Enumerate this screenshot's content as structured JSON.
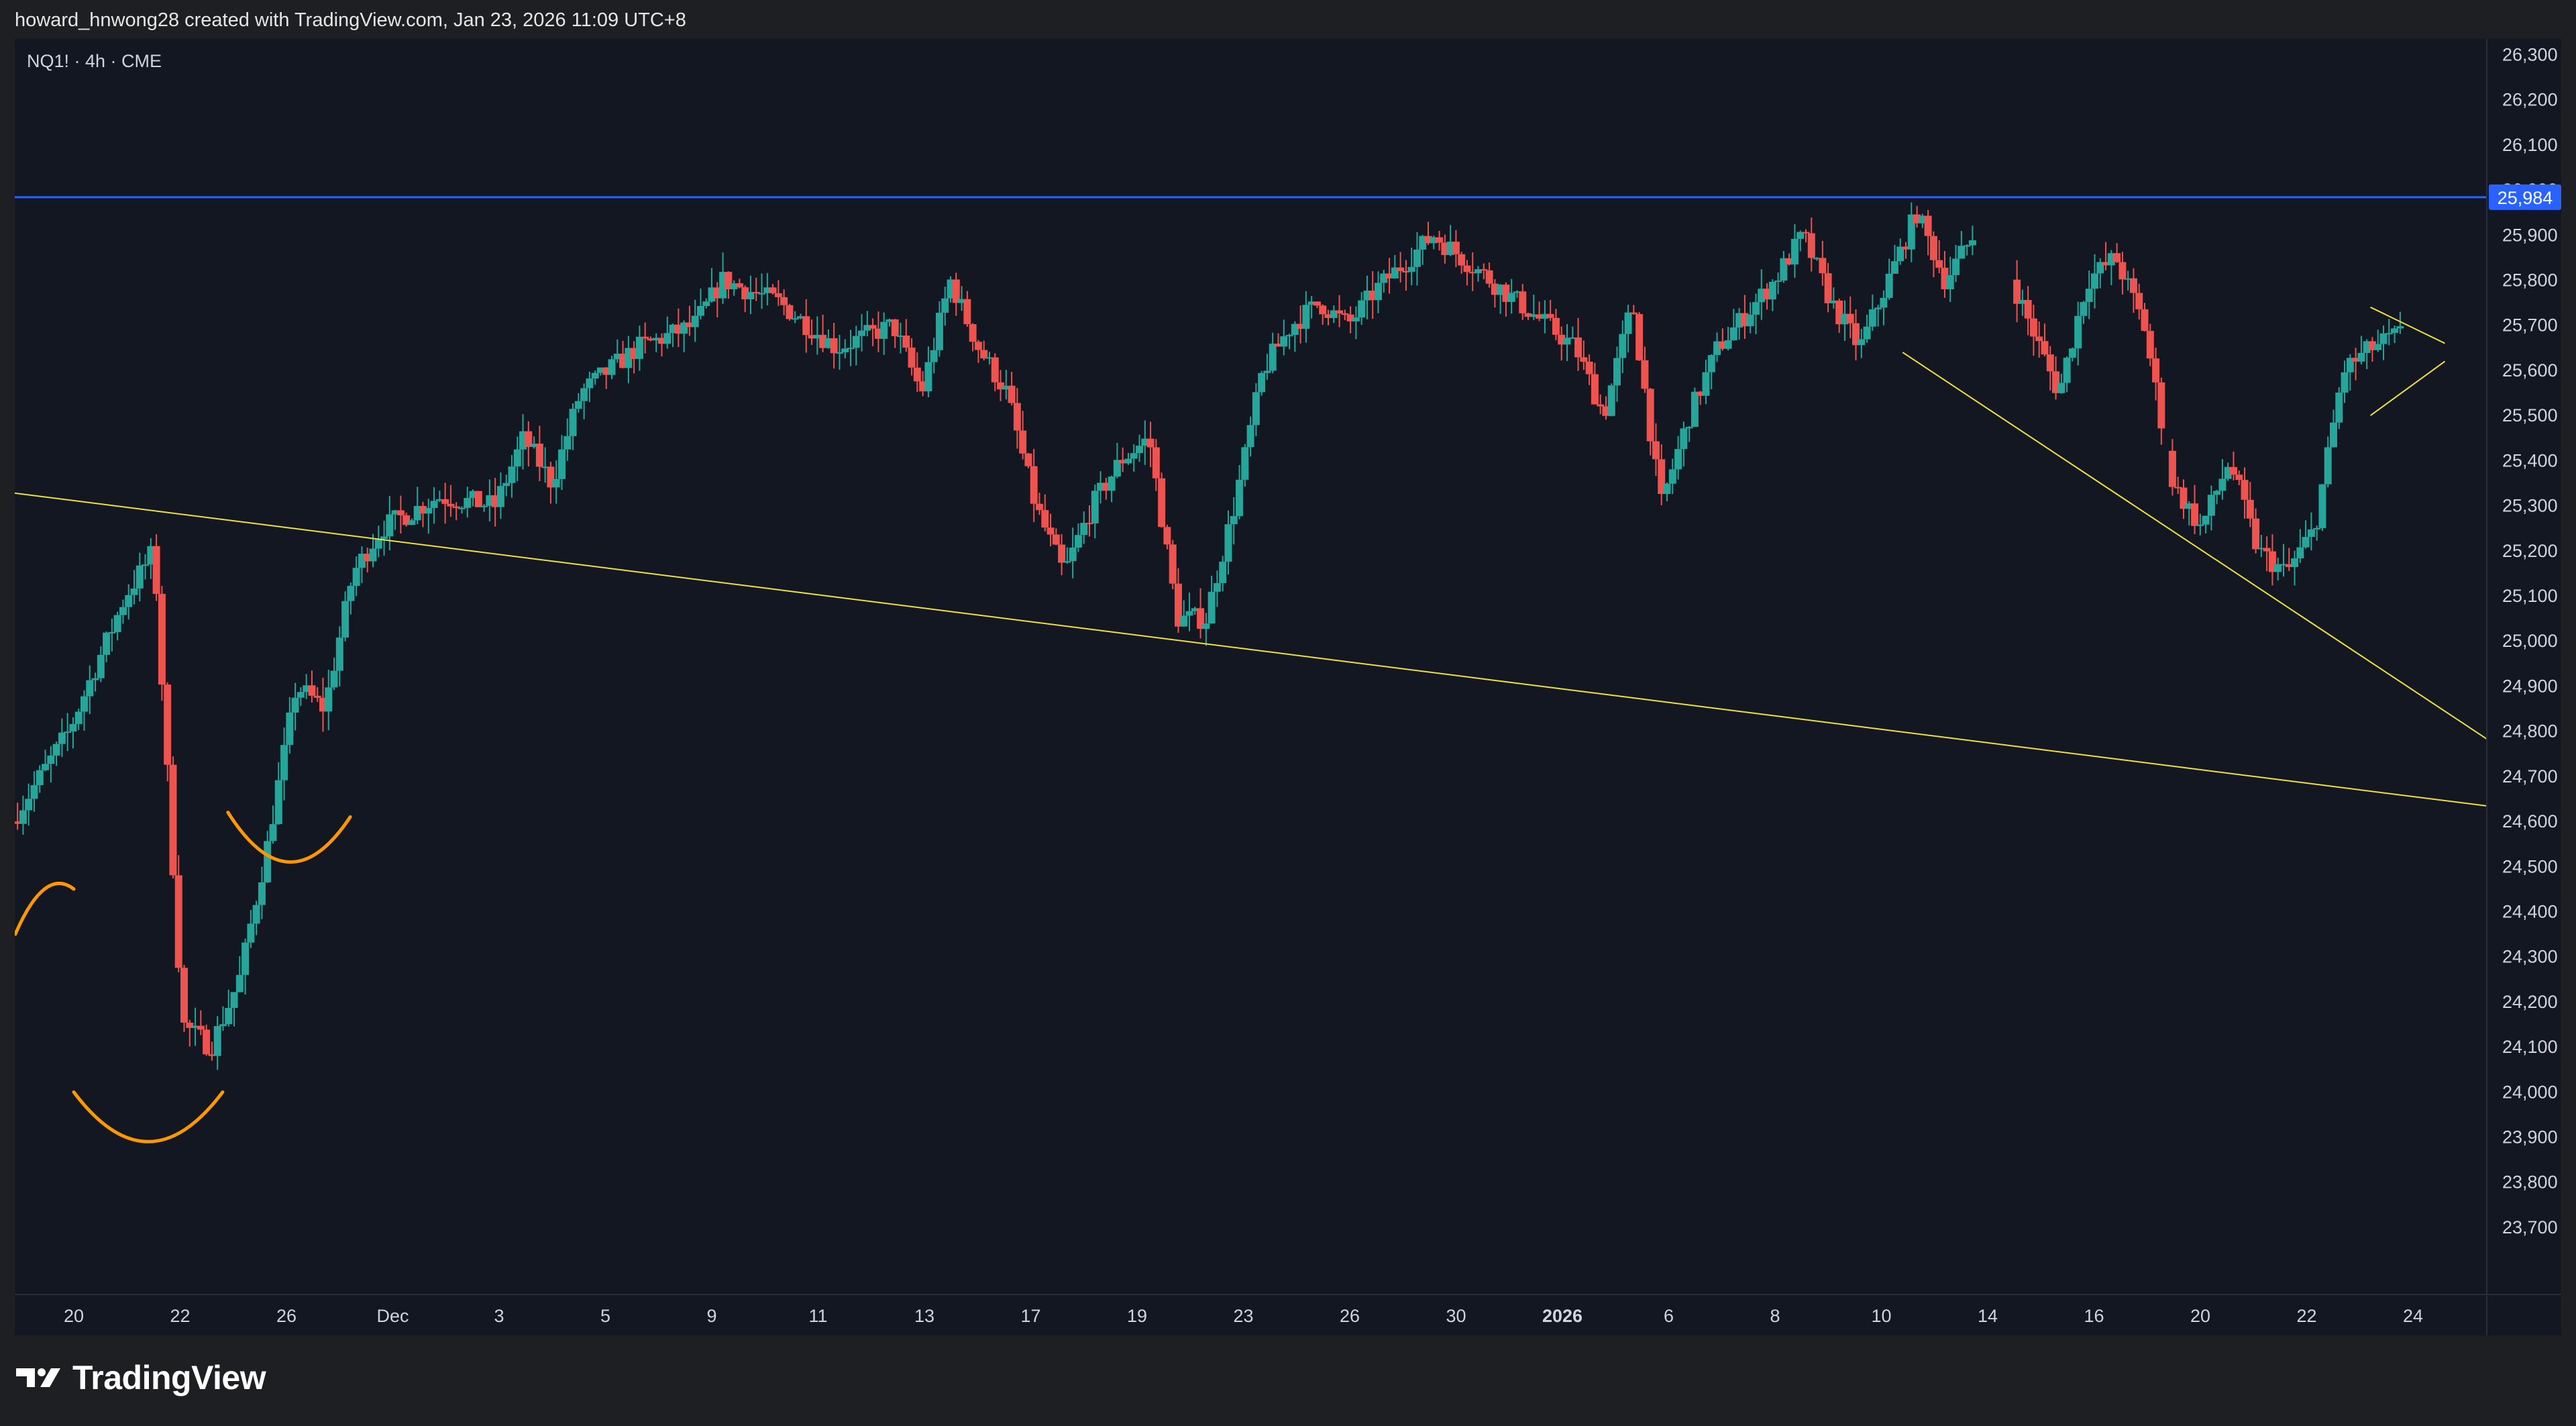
{
  "header": {
    "attribution": "howard_hnwong28 created with TradingView.com, Jan 23, 2026 11:09 UTC+8"
  },
  "symbol": {
    "label": "NQ1! · 4h · CME"
  },
  "footer": {
    "brand": "TradingView"
  },
  "colors": {
    "background": "#131722",
    "up": "#26a69a",
    "down": "#ef5350",
    "resistance_line": "#2962ff",
    "trendline": "#f2e13a",
    "arc": "#ff9800",
    "axis_text": "#d1d4dc"
  },
  "chart_data": {
    "type": "candlestick",
    "title": "NQ1! · 4h · CME",
    "ylim": [
      23630,
      26320
    ],
    "y_ticks": [
      "26,300",
      "26,200",
      "26,100",
      "26,000",
      "25,900",
      "25,800",
      "25,700",
      "25,600",
      "25,500",
      "25,400",
      "25,300",
      "25,200",
      "25,100",
      "25,000",
      "24,900",
      "24,800",
      "24,700",
      "24,600",
      "24,500",
      "24,400",
      "24,300",
      "24,200",
      "24,100",
      "24,000",
      "23,900",
      "23,800",
      "23,700"
    ],
    "x_ticks": [
      "20",
      "22",
      "26",
      "Dec",
      "3",
      "5",
      "9",
      "11",
      "13",
      "17",
      "19",
      "23",
      "26",
      "30",
      "2026",
      "6",
      "8",
      "10",
      "14",
      "16",
      "20",
      "22",
      "24"
    ],
    "x_ticks_bold": [
      "2026"
    ],
    "last_price_label": "25,984",
    "resistance_level": 25984,
    "close_path": [
      [
        0,
        24600
      ],
      [
        2,
        24800
      ],
      [
        4,
        25100
      ],
      [
        5,
        25200
      ],
      [
        6,
        24150
      ],
      [
        7,
        24100
      ],
      [
        8,
        24250
      ],
      [
        9,
        24550
      ],
      [
        10,
        24900
      ],
      [
        11,
        24850
      ],
      [
        12,
        25150
      ],
      [
        13,
        25250
      ],
      [
        15,
        25320
      ],
      [
        17,
        25300
      ],
      [
        18,
        25450
      ],
      [
        19,
        25350
      ],
      [
        20,
        25550
      ],
      [
        22,
        25650
      ],
      [
        24,
        25700
      ],
      [
        25,
        25800
      ],
      [
        27,
        25750
      ],
      [
        29,
        25650
      ],
      [
        31,
        25700
      ],
      [
        32,
        25550
      ],
      [
        33,
        25800
      ],
      [
        34,
        25650
      ],
      [
        35,
        25550
      ],
      [
        36,
        25300
      ],
      [
        37,
        25150
      ],
      [
        38,
        25300
      ],
      [
        39,
        25400
      ],
      [
        40,
        25450
      ],
      [
        41,
        25050
      ],
      [
        42,
        25050
      ],
      [
        43,
        25300
      ],
      [
        44,
        25600
      ],
      [
        45,
        25700
      ],
      [
        46,
        25750
      ],
      [
        47,
        25700
      ],
      [
        48,
        25780
      ],
      [
        50,
        25900
      ],
      [
        52,
        25800
      ],
      [
        54,
        25700
      ],
      [
        55,
        25650
      ],
      [
        56,
        25500
      ],
      [
        57,
        25750
      ],
      [
        58,
        25300
      ],
      [
        59,
        25500
      ],
      [
        60,
        25650
      ],
      [
        62,
        25800
      ],
      [
        63,
        25900
      ],
      [
        64,
        25750
      ],
      [
        65,
        25650
      ],
      [
        66,
        25800
      ],
      [
        67,
        25950
      ],
      [
        68,
        25800
      ],
      [
        69,
        25900
      ],
      [
        70,
        25850
      ],
      [
        71,
        25700
      ],
      [
        72,
        25550
      ],
      [
        73,
        25800
      ],
      [
        74,
        25850
      ],
      [
        75,
        25700
      ],
      [
        76,
        25350
      ],
      [
        77,
        25250
      ],
      [
        78,
        25400
      ],
      [
        79,
        25200
      ],
      [
        80,
        25150
      ],
      [
        81,
        25250
      ],
      [
        82,
        25600
      ],
      [
        83,
        25650
      ],
      [
        84,
        25680
      ]
    ],
    "trendlines": [
      {
        "from": [
          "Nov 17",
          25350
        ],
        "to": [
          "Jan 24",
          24630
        ]
      },
      {
        "from": [
          "Jan 11",
          25640
        ],
        "to": [
          "Jan 24",
          24760
        ]
      },
      {
        "from": [
          "Jan 22",
          25500
        ],
        "to": [
          "Jan 23",
          25620
        ]
      },
      {
        "from": [
          "Jan 22",
          25740
        ],
        "to": [
          "Jan 23",
          25660
        ]
      }
    ],
    "arcs": [
      {
        "from": [
          "Nov 19",
          24350
        ],
        "low": [
          "Nov 19",
          24450
        ],
        "to": [
          "Nov 20",
          24450
        ]
      },
      {
        "from": [
          "Nov 20",
          24000
        ],
        "low": [
          "Nov 22",
          23890
        ],
        "to": [
          "Nov 23",
          24000
        ]
      },
      {
        "from": [
          "Nov 24",
          24620
        ],
        "low": [
          "Nov 25",
          24510
        ],
        "to": [
          "Nov 26",
          24610
        ]
      }
    ],
    "grid": false,
    "legend": "none"
  }
}
